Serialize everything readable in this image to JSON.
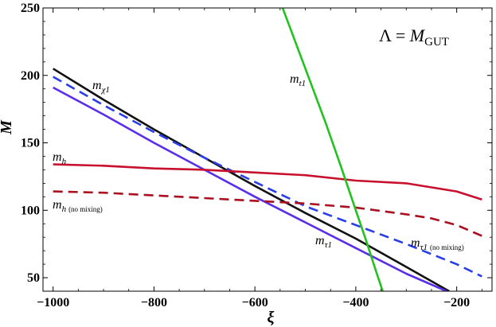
{
  "chart_data": {
    "type": "line",
    "title": "",
    "xlabel": "ξ",
    "ylabel": "M",
    "xlim": [
      -1020,
      -130
    ],
    "ylim": [
      40,
      250
    ],
    "x_ticks": [
      "−1000",
      "−800",
      "−600",
      "−400",
      "−200"
    ],
    "y_ticks": [
      "50",
      "100",
      "150",
      "200",
      "250"
    ],
    "x_tick_values": [
      -1000,
      -800,
      -600,
      -400,
      -200
    ],
    "y_tick_values": [
      50,
      100,
      150,
      200,
      250
    ],
    "grid": false,
    "corner_label": {
      "lhs": "Λ = ",
      "M": "M",
      "sub": "GUT"
    },
    "series": [
      {
        "key": "m_chi1",
        "color": "#111111",
        "dash": false,
        "label": {
          "main": "m",
          "sub": "χ1",
          "note": ""
        },
        "x": [
          -1000,
          -900,
          -800,
          -700,
          -600,
          -500,
          -400,
          -300,
          -215
        ],
        "y": [
          205,
          182,
          160,
          139,
          118,
          98,
          79,
          58,
          40
        ]
      },
      {
        "key": "m_chi1_dashed",
        "color": "#2a3ee6",
        "dash": true,
        "label": null,
        "x": [
          -1000,
          -900,
          -800,
          -700,
          -600,
          -500,
          -400,
          -300,
          -200,
          -150
        ],
        "y": [
          199,
          178,
          158,
          139,
          121,
          103,
          89,
          75,
          60,
          51
        ]
      },
      {
        "key": "m_tau1",
        "color": "#5a2ee8",
        "dash": false,
        "label": {
          "main": "m",
          "sub": "τ1",
          "note": ""
        },
        "x": [
          -1000,
          -900,
          -800,
          -700,
          -600,
          -500,
          -400,
          -300,
          -220
        ],
        "y": [
          191,
          171,
          150,
          130,
          110,
          91,
          72,
          53,
          40
        ]
      },
      {
        "key": "m_h",
        "color": "#c8102e",
        "dash": false,
        "label": {
          "main": "m",
          "sub": "h",
          "note": ""
        },
        "x": [
          -1000,
          -900,
          -800,
          -700,
          -600,
          -500,
          -400,
          -300,
          -250,
          -200,
          -150
        ],
        "y": [
          134,
          133,
          131,
          130,
          128,
          126,
          122,
          120,
          117,
          114,
          108
        ]
      },
      {
        "key": "m_h_nomix",
        "color": "#aa1020",
        "dash": true,
        "label": {
          "main": "m",
          "sub": "h",
          "note": "(no mixing)"
        },
        "x": [
          -1000,
          -900,
          -800,
          -700,
          -600,
          -500,
          -400,
          -300,
          -250,
          -200,
          -150
        ],
        "y": [
          114,
          113,
          111,
          109,
          107,
          105,
          102,
          97,
          94,
          89,
          81
        ]
      },
      {
        "key": "m_t1",
        "color": "#22c21f",
        "dash": false,
        "label": {
          "main": "m",
          "sub": "t1",
          "note": ""
        },
        "x": [
          -545,
          -520,
          -490,
          -460,
          -430,
          -400,
          -380,
          -360,
          -345
        ],
        "y": [
          250,
          225,
          195,
          165,
          133,
          100,
          78,
          55,
          38
        ]
      },
      {
        "key": "m_tau1_nomix",
        "color": "#2a3ee6",
        "dash": true,
        "label": {
          "main": "m",
          "sub": "τ1",
          "note": "(no mixing)"
        },
        "x": [],
        "y": []
      }
    ]
  }
}
